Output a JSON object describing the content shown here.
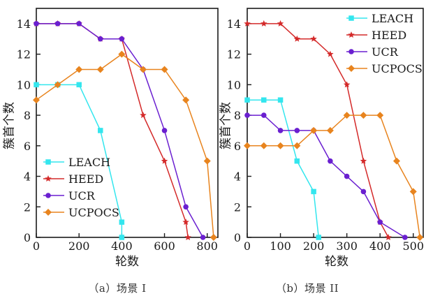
{
  "colors": {
    "LEACH": "#33e6ee",
    "HEED": "#d42a2a",
    "UCR": "#6a1fd0",
    "UCPOCS": "#e8841e",
    "axis": "#1a1a1a"
  },
  "chart_data": [
    {
      "type": "line",
      "caption": "（a）场景 I",
      "xlabel": "轮数",
      "ylabel": "簇首个数",
      "xlim": [
        0,
        850
      ],
      "ylim": [
        0,
        15
      ],
      "xticks": [
        0,
        200,
        400,
        600,
        800
      ],
      "xtick_labels": [
        "0",
        "200",
        "400",
        "600",
        "800"
      ],
      "yticks": [
        0,
        2,
        4,
        6,
        8,
        10,
        12,
        14
      ],
      "ytick_labels": [
        "0",
        "2",
        "4",
        "6",
        "8",
        "10",
        "12",
        "14"
      ],
      "legend_position": "bottom-left",
      "series": [
        {
          "name": "LEACH",
          "marker": "square",
          "x": [
            0,
            100,
            200,
            300,
            400,
            400
          ],
          "y": [
            10,
            10,
            10,
            7,
            1,
            0
          ]
        },
        {
          "name": "HEED",
          "marker": "star",
          "x": [
            0,
            100,
            200,
            300,
            400,
            500,
            600,
            700,
            710
          ],
          "y": [
            14,
            14,
            14,
            13,
            13,
            8,
            5,
            1,
            0
          ]
        },
        {
          "name": "UCR",
          "marker": "circle",
          "x": [
            0,
            100,
            200,
            300,
            400,
            500,
            600,
            700,
            780
          ],
          "y": [
            14,
            14,
            14,
            13,
            13,
            11,
            7,
            2,
            0
          ]
        },
        {
          "name": "UCPOCS",
          "marker": "diamond",
          "x": [
            0,
            100,
            200,
            300,
            400,
            500,
            600,
            700,
            800,
            830
          ],
          "y": [
            9,
            10,
            11,
            11,
            12,
            11,
            11,
            9,
            5,
            0
          ]
        }
      ]
    },
    {
      "type": "line",
      "caption": "（b）场景 II",
      "xlabel": "轮数",
      "ylabel": "簇首个数",
      "xlim": [
        0,
        530
      ],
      "ylim": [
        0,
        15
      ],
      "xticks": [
        0,
        100,
        200,
        300,
        400,
        500
      ],
      "xtick_labels": [
        "0",
        "100",
        "200",
        "300",
        "400",
        "500"
      ],
      "yticks": [
        0,
        2,
        4,
        6,
        8,
        10,
        12,
        14
      ],
      "ytick_labels": [
        "0",
        "2",
        "4",
        "6",
        "8",
        "10",
        "12",
        "14"
      ],
      "legend_position": "top-right",
      "series": [
        {
          "name": "LEACH",
          "marker": "square",
          "x": [
            0,
            50,
            100,
            150,
            200,
            215
          ],
          "y": [
            9,
            9,
            9,
            5,
            3,
            0
          ]
        },
        {
          "name": "HEED",
          "marker": "star",
          "x": [
            0,
            50,
            100,
            150,
            200,
            250,
            300,
            350,
            400,
            425
          ],
          "y": [
            14,
            14,
            14,
            13,
            13,
            12,
            10,
            5,
            1,
            0
          ]
        },
        {
          "name": "UCR",
          "marker": "circle",
          "x": [
            0,
            50,
            100,
            150,
            200,
            250,
            300,
            350,
            400,
            475
          ],
          "y": [
            8,
            8,
            7,
            7,
            7,
            5,
            4,
            3,
            1,
            0
          ]
        },
        {
          "name": "UCPOCS",
          "marker": "diamond",
          "x": [
            0,
            50,
            100,
            150,
            200,
            250,
            300,
            350,
            400,
            450,
            500,
            520
          ],
          "y": [
            6,
            6,
            6,
            6,
            7,
            7,
            8,
            8,
            8,
            5,
            3,
            0
          ]
        }
      ]
    }
  ]
}
